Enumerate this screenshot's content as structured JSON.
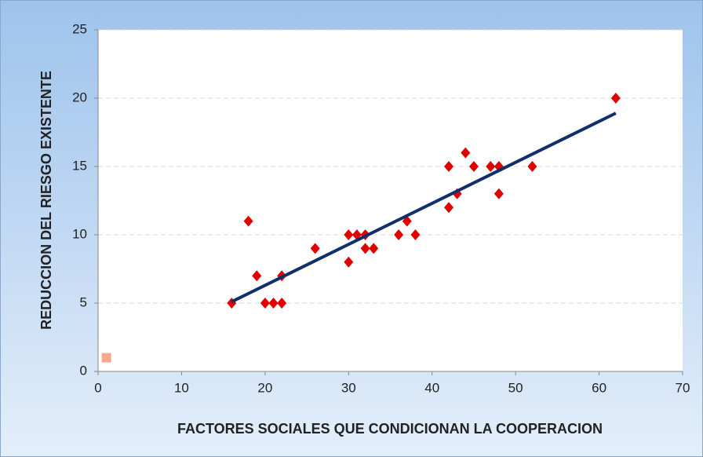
{
  "chart_data": {
    "type": "scatter",
    "xlabel": "FACTORES SOCIALES QUE CONDICIONAN LA COOPERACION",
    "ylabel": "REDUCCION DEL RIESGO EXISTENTE",
    "xlim": [
      0,
      70
    ],
    "xticks": [
      0,
      10,
      20,
      30,
      40,
      50,
      60,
      70
    ],
    "ylim": [
      0,
      25
    ],
    "yticks": [
      0,
      5,
      10,
      15,
      20,
      25
    ],
    "grid": true,
    "series": [
      {
        "marker": "diamond",
        "color": "#e00000",
        "x": [
          16,
          18,
          19,
          20,
          21,
          22,
          22,
          26,
          30,
          30,
          31,
          32,
          32,
          33,
          36,
          37,
          38,
          42,
          42,
          43,
          44,
          45,
          47,
          48,
          48,
          52,
          62
        ],
        "values": [
          5,
          11,
          7,
          5,
          5,
          5,
          7,
          9,
          10,
          8,
          10,
          10,
          9,
          9,
          10,
          11,
          10,
          15,
          12,
          13,
          16,
          15,
          15,
          15,
          13,
          15,
          20
        ]
      },
      {
        "marker": "square",
        "color": "#f4a98a",
        "x": [
          1
        ],
        "values": [
          1
        ]
      },
      {
        "marker": "line",
        "color": "#10306a",
        "x": [
          16,
          62
        ],
        "values": [
          5.1,
          18.9
        ]
      }
    ]
  }
}
